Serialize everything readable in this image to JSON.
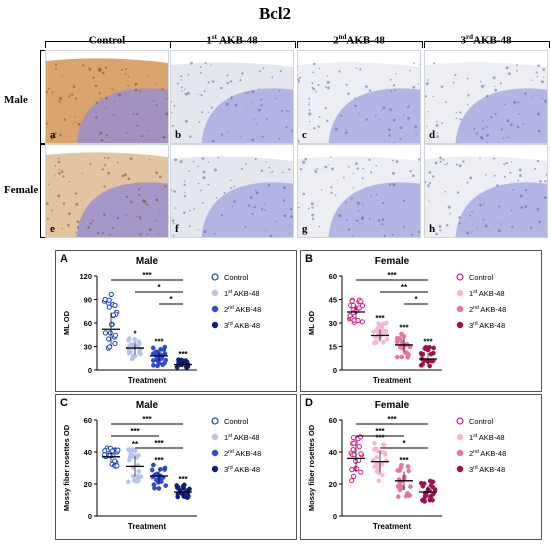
{
  "figure_title": "Bcl2",
  "columns": [
    {
      "label": "Control",
      "sup": "",
      "rest": ""
    },
    {
      "label": "1",
      "sup": "st",
      "rest": " AKB-48"
    },
    {
      "label": "2",
      "sup": "nd",
      "rest": "AKB-48"
    },
    {
      "label": "3",
      "sup": "rd",
      "rest": "AKB-48"
    }
  ],
  "rows": [
    "Male",
    "Female"
  ],
  "micrograph_letters": [
    "a",
    "b",
    "c",
    "d",
    "e",
    "f",
    "g",
    "h"
  ],
  "colors": {
    "male": [
      "#1a3fc4",
      "#b7c3ee",
      "#2f47d6",
      "#0f1f7a"
    ],
    "female": [
      "#e0148a",
      "#f4b8d6",
      "#e8759f",
      "#a10f4e"
    ],
    "stain_brown": "#c98a4c",
    "stain_blue": "#8c8fd4"
  },
  "legend_labels": [
    {
      "text": "Control",
      "sup": "",
      "rest": ""
    },
    {
      "text": "1",
      "sup": "st",
      "rest": " AKB-48"
    },
    {
      "text": "2",
      "sup": "nd",
      "rest": " AKB-48"
    },
    {
      "text": "3",
      "sup": "rd",
      "rest": " AKB-48"
    }
  ],
  "chart_data": [
    {
      "panel": "A",
      "type": "scatter",
      "title": "Male",
      "xlabel": "Treatment",
      "ylabel": "ML OD",
      "ylim": [
        0,
        120
      ],
      "yticks": [
        0,
        30,
        60,
        90,
        120
      ],
      "series": [
        {
          "name": "Control",
          "mean": 52,
          "min": 25,
          "max": 100
        },
        {
          "name": "1st AKB-48",
          "mean": 28,
          "min": 12,
          "max": 40
        },
        {
          "name": "2nd AKB-48",
          "mean": 18,
          "min": 5,
          "max": 30
        },
        {
          "name": "3rd AKB-48",
          "mean": 7,
          "min": 2,
          "max": 14
        }
      ],
      "significance": [
        {
          "from": 0,
          "to": 3,
          "label": "***"
        },
        {
          "from": 1,
          "to": 3,
          "label": "*"
        },
        {
          "from": 2,
          "to": 3,
          "label": "*"
        }
      ],
      "point_labels": [
        "*",
        "***",
        "***"
      ]
    },
    {
      "panel": "B",
      "type": "scatter",
      "title": "Female",
      "xlabel": "Treatment",
      "ylabel": "ML OD",
      "ylim": [
        0,
        60
      ],
      "yticks": [
        0,
        15,
        30,
        45,
        60
      ],
      "series": [
        {
          "name": "Control",
          "mean": 37,
          "min": 30,
          "max": 45
        },
        {
          "name": "1st AKB-48",
          "mean": 22,
          "min": 17,
          "max": 30
        },
        {
          "name": "2nd AKB-48",
          "mean": 16,
          "min": 8,
          "max": 24
        },
        {
          "name": "3rd AKB-48",
          "mean": 7,
          "min": 2,
          "max": 15
        }
      ],
      "significance": [
        {
          "from": 0,
          "to": 3,
          "label": "***"
        },
        {
          "from": 1,
          "to": 3,
          "label": "**"
        },
        {
          "from": 2,
          "to": 3,
          "label": "*"
        }
      ],
      "point_labels": [
        "***",
        "***",
        "***"
      ]
    },
    {
      "panel": "C",
      "type": "scatter",
      "title": "Male",
      "xlabel": "Treatment",
      "ylabel": "Mossy fiber rosettes OD",
      "ylim": [
        0,
        60
      ],
      "yticks": [
        0,
        20,
        40,
        60
      ],
      "series": [
        {
          "name": "Control",
          "mean": 37,
          "min": 31,
          "max": 43
        },
        {
          "name": "1st AKB-48",
          "mean": 31,
          "min": 20,
          "max": 42
        },
        {
          "name": "2nd AKB-48",
          "mean": 25,
          "min": 16,
          "max": 32
        },
        {
          "name": "3rd AKB-48",
          "mean": 15,
          "min": 10,
          "max": 20
        }
      ],
      "significance": [
        {
          "from": 0,
          "to": 3,
          "label": "***"
        },
        {
          "from": 0,
          "to": 2,
          "label": "***"
        },
        {
          "from": 1,
          "to": 3,
          "label": "***"
        }
      ],
      "point_labels": [
        "**",
        "***",
        "***"
      ]
    },
    {
      "panel": "D",
      "type": "scatter",
      "title": "Female",
      "xlabel": "Treatment",
      "ylabel": "Mossy fiber rosettes OD",
      "ylim": [
        0,
        60
      ],
      "yticks": [
        0,
        20,
        40,
        60
      ],
      "series": [
        {
          "name": "Control",
          "mean": 36,
          "min": 20,
          "max": 50
        },
        {
          "name": "1st AKB-48",
          "mean": 34,
          "min": 22,
          "max": 46
        },
        {
          "name": "2nd AKB-48",
          "mean": 22,
          "min": 12,
          "max": 32
        },
        {
          "name": "3rd AKB-48",
          "mean": 15,
          "min": 8,
          "max": 22
        }
      ],
      "significance": [
        {
          "from": 0,
          "to": 3,
          "label": "***"
        },
        {
          "from": 0,
          "to": 2,
          "label": "***"
        },
        {
          "from": 1,
          "to": 3,
          "label": "*"
        }
      ],
      "point_labels": [
        "***",
        "***"
      ]
    }
  ]
}
